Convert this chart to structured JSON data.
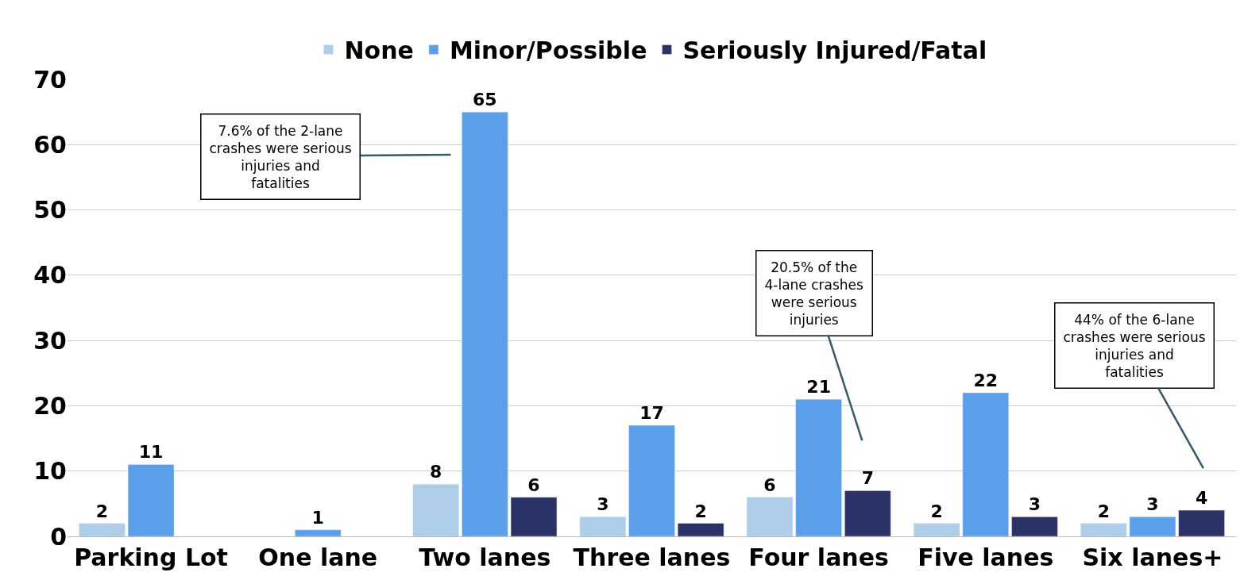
{
  "chart_data": {
    "type": "bar",
    "categories": [
      "Parking Lot",
      "One lane",
      "Two lanes",
      "Three lanes",
      "Four lanes",
      "Five lanes",
      "Six lanes+"
    ],
    "series": [
      {
        "name": "None",
        "color": "#aecde8",
        "values": [
          2,
          null,
          8,
          3,
          6,
          2,
          2
        ]
      },
      {
        "name": "Minor/Possible",
        "color": "#5b9ee9",
        "values": [
          11,
          1,
          65,
          17,
          21,
          22,
          3
        ]
      },
      {
        "name": "Seriously Injured/Fatal",
        "color": "#2b3266",
        "values": [
          null,
          null,
          6,
          2,
          7,
          3,
          4
        ]
      }
    ],
    "ylim": [
      0,
      70
    ],
    "yticks": [
      0,
      10,
      20,
      30,
      40,
      50,
      60,
      70
    ],
    "grid": "y",
    "legend": "top",
    "data_labels": true,
    "annotations": [
      "7.6% of the 2-lane crashes were serious injuries and fatalities",
      "20.5% of the 4-lane crashes were serious injuries",
      "44% of the 6-lane crashes were serious injuries and fatalities"
    ]
  }
}
